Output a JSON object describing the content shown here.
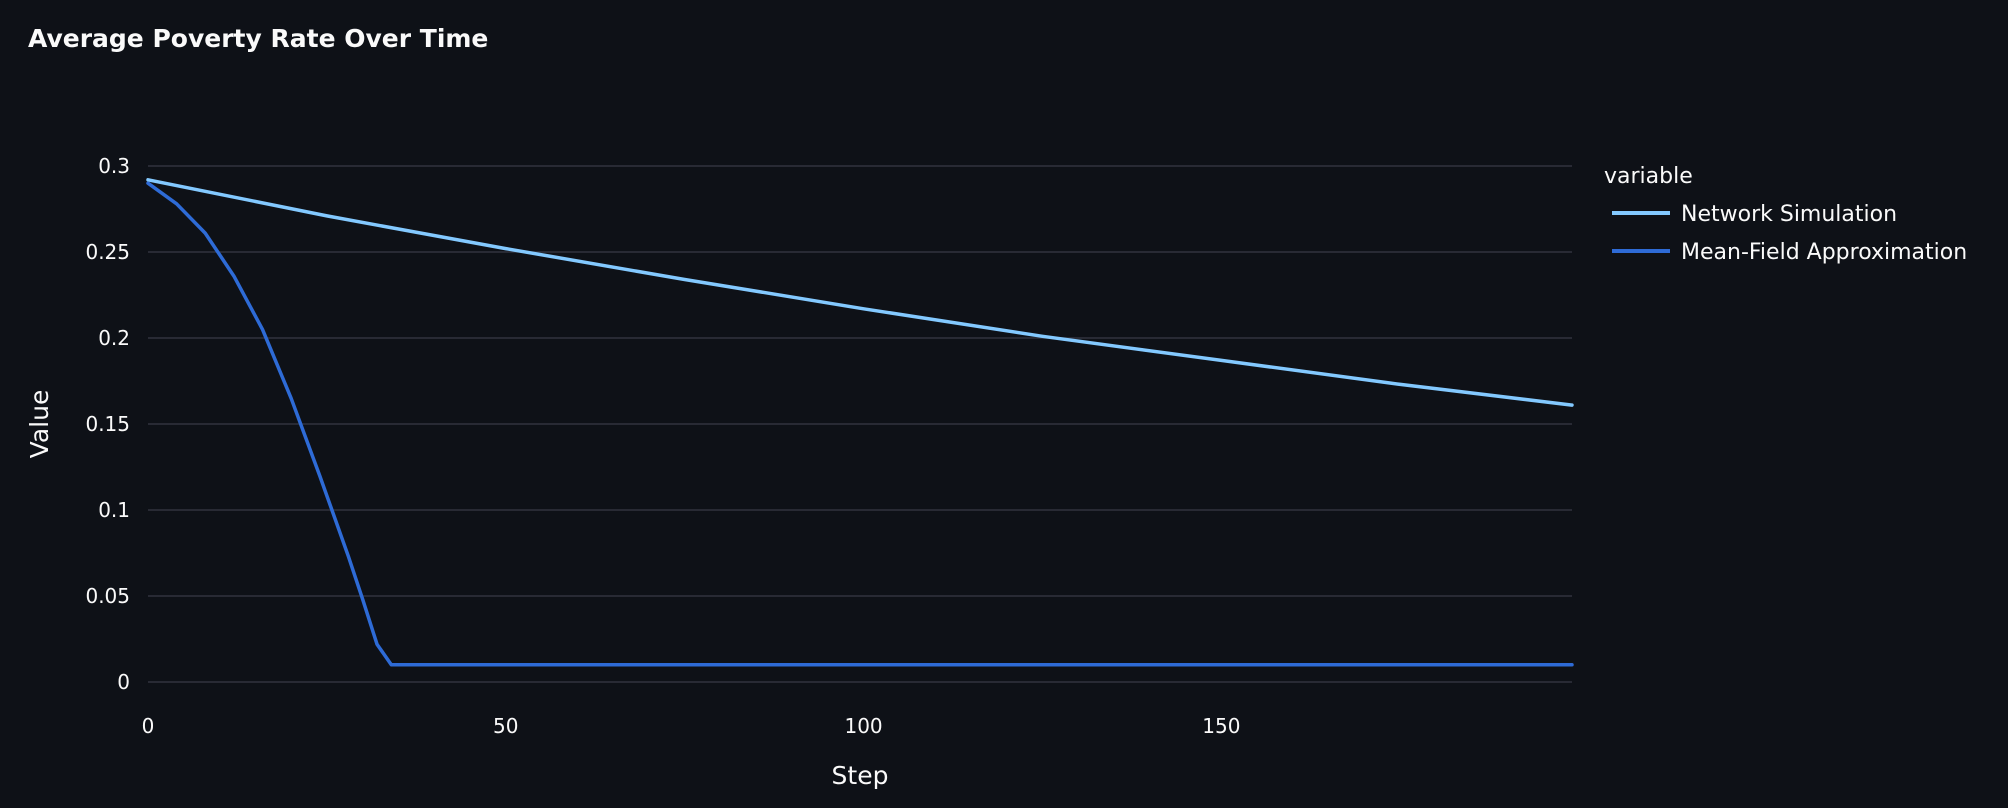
{
  "chart_data": {
    "type": "line",
    "title": "Average Poverty Rate Over Time",
    "xlabel": "Step",
    "ylabel": "Value",
    "xlim": [
      0,
      199
    ],
    "ylim": [
      0,
      0.3
    ],
    "xticks": [
      0,
      50,
      100,
      150
    ],
    "xtick_labels": [
      "0",
      "50",
      "100",
      "150"
    ],
    "yticks": [
      0,
      0.05,
      0.1,
      0.15,
      0.2,
      0.25,
      0.3
    ],
    "ytick_labels": [
      "0",
      "0.05",
      "0.1",
      "0.15",
      "0.2",
      "0.25",
      "0.3"
    ],
    "grid": true,
    "legend": {
      "title": "variable",
      "position": "right"
    },
    "series": [
      {
        "name": "Network Simulation",
        "color": "#83c9ff",
        "x": [
          0,
          25,
          50,
          75,
          100,
          125,
          150,
          175,
          199
        ],
        "y": [
          0.292,
          0.271,
          0.252,
          0.234,
          0.217,
          0.201,
          0.187,
          0.173,
          0.161
        ]
      },
      {
        "name": "Mean-Field Approximation",
        "color": "#2e6bd6",
        "x": [
          0,
          4,
          8,
          12,
          16,
          20,
          24,
          28,
          30,
          32,
          34,
          40,
          60,
          80,
          100,
          120,
          140,
          160,
          180,
          199
        ],
        "y": [
          0.29,
          0.278,
          0.261,
          0.236,
          0.205,
          0.165,
          0.12,
          0.073,
          0.048,
          0.022,
          0.01,
          0.01,
          0.01,
          0.01,
          0.01,
          0.01,
          0.01,
          0.01,
          0.01,
          0.01
        ]
      }
    ]
  }
}
